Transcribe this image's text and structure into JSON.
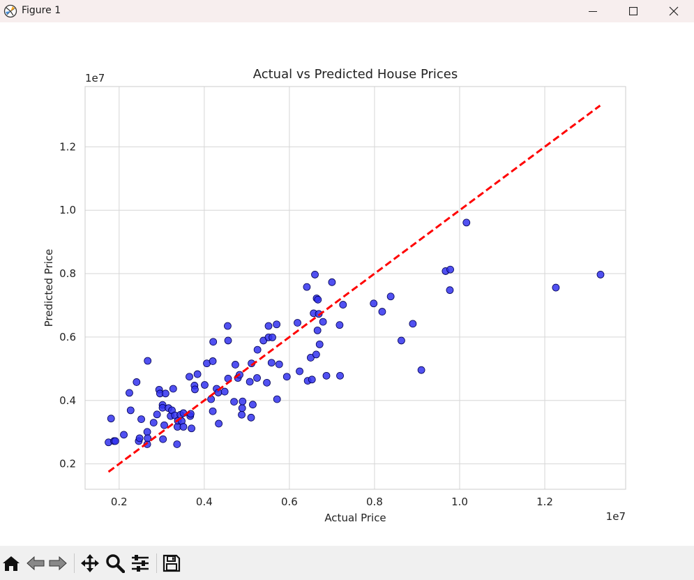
{
  "window": {
    "title": "Figure 1",
    "buttons": {
      "minimize": "minimize-icon",
      "maximize": "maximize-icon",
      "close": "close-icon"
    }
  },
  "toolbar": {
    "items": [
      {
        "name": "home-icon"
      },
      {
        "name": "back-arrow-icon"
      },
      {
        "name": "forward-arrow-icon"
      },
      {
        "name": "pan-icon"
      },
      {
        "name": "zoom-icon"
      },
      {
        "name": "configure-subplots-icon"
      },
      {
        "name": "save-icon"
      }
    ]
  },
  "colors": {
    "point_fill": "#3333ee",
    "point_edge": "#000055",
    "diagonal": "#ff0000",
    "grid": "#d6d6d6",
    "axes": "#cccccc"
  },
  "chart_data": {
    "type": "scatter",
    "title": "Actual vs Predicted House Prices",
    "xlabel": "Actual Price",
    "ylabel": "Predicted Price",
    "x_offset_label": "1e7",
    "y_offset_label": "1e7",
    "xlim": [
      0.12,
      1.39
    ],
    "ylim": [
      0.12,
      1.39
    ],
    "xticks": [
      0.2,
      0.4,
      0.6,
      0.8,
      1.0,
      1.2
    ],
    "yticks": [
      0.2,
      0.4,
      0.6,
      0.8,
      1.0,
      1.2
    ],
    "xtick_labels": [
      "0.2",
      "0.4",
      "0.6",
      "0.8",
      "1.0",
      "1.2"
    ],
    "ytick_labels": [
      "0.2",
      "0.4",
      "0.6",
      "0.8",
      "1.0",
      "1.2"
    ],
    "grid": true,
    "reference_line": {
      "style": "dashed",
      "from": [
        0.175,
        0.175
      ],
      "to": [
        1.33,
        1.33
      ]
    },
    "series": [
      {
        "points": [
          [
            0.175,
            0.268
          ],
          [
            0.181,
            0.343
          ],
          [
            0.188,
            0.272
          ],
          [
            0.191,
            0.272
          ],
          [
            0.211,
            0.292
          ],
          [
            0.224,
            0.424
          ],
          [
            0.227,
            0.369
          ],
          [
            0.241,
            0.458
          ],
          [
            0.246,
            0.272
          ],
          [
            0.248,
            0.281
          ],
          [
            0.252,
            0.341
          ],
          [
            0.266,
            0.301
          ],
          [
            0.266,
            0.262
          ],
          [
            0.267,
            0.281
          ],
          [
            0.267,
            0.525
          ],
          [
            0.281,
            0.33
          ],
          [
            0.289,
            0.356
          ],
          [
            0.294,
            0.434
          ],
          [
            0.296,
            0.422
          ],
          [
            0.302,
            0.386
          ],
          [
            0.302,
            0.377
          ],
          [
            0.303,
            0.278
          ],
          [
            0.306,
            0.322
          ],
          [
            0.309,
            0.422
          ],
          [
            0.316,
            0.376
          ],
          [
            0.321,
            0.351
          ],
          [
            0.324,
            0.369
          ],
          [
            0.327,
            0.437
          ],
          [
            0.331,
            0.353
          ],
          [
            0.336,
            0.262
          ],
          [
            0.337,
            0.317
          ],
          [
            0.338,
            0.336
          ],
          [
            0.344,
            0.355
          ],
          [
            0.347,
            0.335
          ],
          [
            0.351,
            0.317
          ],
          [
            0.351,
            0.36
          ],
          [
            0.365,
            0.475
          ],
          [
            0.367,
            0.351
          ],
          [
            0.368,
            0.358
          ],
          [
            0.37,
            0.312
          ],
          [
            0.377,
            0.447
          ],
          [
            0.378,
            0.435
          ],
          [
            0.384,
            0.483
          ],
          [
            0.401,
            0.449
          ],
          [
            0.406,
            0.517
          ],
          [
            0.416,
            0.404
          ],
          [
            0.42,
            0.524
          ],
          [
            0.42,
            0.366
          ],
          [
            0.421,
            0.585
          ],
          [
            0.429,
            0.437
          ],
          [
            0.433,
            0.425
          ],
          [
            0.434,
            0.327
          ],
          [
            0.448,
            0.428
          ],
          [
            0.455,
            0.635
          ],
          [
            0.456,
            0.589
          ],
          [
            0.456,
            0.469
          ],
          [
            0.47,
            0.396
          ],
          [
            0.473,
            0.513
          ],
          [
            0.479,
            0.471
          ],
          [
            0.483,
            0.481
          ],
          [
            0.488,
            0.355
          ],
          [
            0.489,
            0.376
          ],
          [
            0.49,
            0.397
          ],
          [
            0.507,
            0.459
          ],
          [
            0.51,
            0.346
          ],
          [
            0.511,
            0.517
          ],
          [
            0.514,
            0.387
          ],
          [
            0.524,
            0.471
          ],
          [
            0.525,
            0.56
          ],
          [
            0.539,
            0.589
          ],
          [
            0.547,
            0.456
          ],
          [
            0.551,
            0.635
          ],
          [
            0.551,
            0.599
          ],
          [
            0.558,
            0.519
          ],
          [
            0.56,
            0.599
          ],
          [
            0.57,
            0.64
          ],
          [
            0.571,
            0.404
          ],
          [
            0.576,
            0.514
          ],
          [
            0.594,
            0.475
          ],
          [
            0.619,
            0.645
          ],
          [
            0.624,
            0.492
          ],
          [
            0.641,
            0.758
          ],
          [
            0.643,
            0.462
          ],
          [
            0.65,
            0.535
          ],
          [
            0.653,
            0.466
          ],
          [
            0.657,
            0.675
          ],
          [
            0.66,
            0.797
          ],
          [
            0.663,
            0.545
          ],
          [
            0.664,
            0.722
          ],
          [
            0.666,
            0.621
          ],
          [
            0.667,
            0.718
          ],
          [
            0.669,
            0.673
          ],
          [
            0.671,
            0.577
          ],
          [
            0.679,
            0.648
          ],
          [
            0.687,
            0.478
          ],
          [
            0.7,
            0.773
          ],
          [
            0.718,
            0.638
          ],
          [
            0.719,
            0.478
          ],
          [
            0.726,
            0.702
          ],
          [
            0.798,
            0.706
          ],
          [
            0.818,
            0.68
          ],
          [
            0.838,
            0.728
          ],
          [
            0.863,
            0.589
          ],
          [
            0.89,
            0.642
          ],
          [
            0.91,
            0.496
          ],
          [
            0.967,
            0.808
          ],
          [
            0.977,
            0.748
          ],
          [
            0.978,
            0.813
          ],
          [
            1.016,
            0.961
          ],
          [
            1.226,
            0.756
          ],
          [
            1.331,
            0.797
          ]
        ]
      }
    ]
  }
}
